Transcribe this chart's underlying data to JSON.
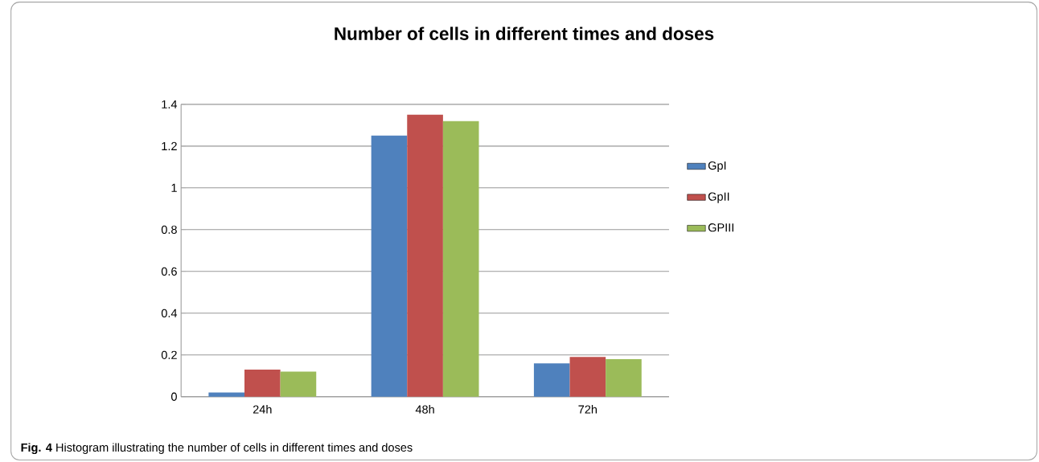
{
  "chart_data": {
    "type": "bar",
    "title": "Number of cells in different times and doses",
    "categories": [
      "24h",
      "48h",
      "72h"
    ],
    "series": [
      {
        "name": "GpI",
        "color": "#4f81bd",
        "values": [
          0.02,
          1.25,
          0.16
        ]
      },
      {
        "name": "GpII",
        "color": "#c0504d",
        "values": [
          0.13,
          1.35,
          0.19
        ]
      },
      {
        "name": "GPIII",
        "color": "#9bbb59",
        "values": [
          0.12,
          1.32,
          0.18
        ]
      }
    ],
    "ylim": [
      0,
      1.4
    ],
    "yticks": [
      0,
      0.2,
      0.4,
      0.6,
      0.8,
      1,
      1.2,
      1.4
    ],
    "grid": "y",
    "legend": "right",
    "annotations": [
      "**Fig. 4** Histogram illustrating the number of cells in different times and doses"
    ]
  }
}
